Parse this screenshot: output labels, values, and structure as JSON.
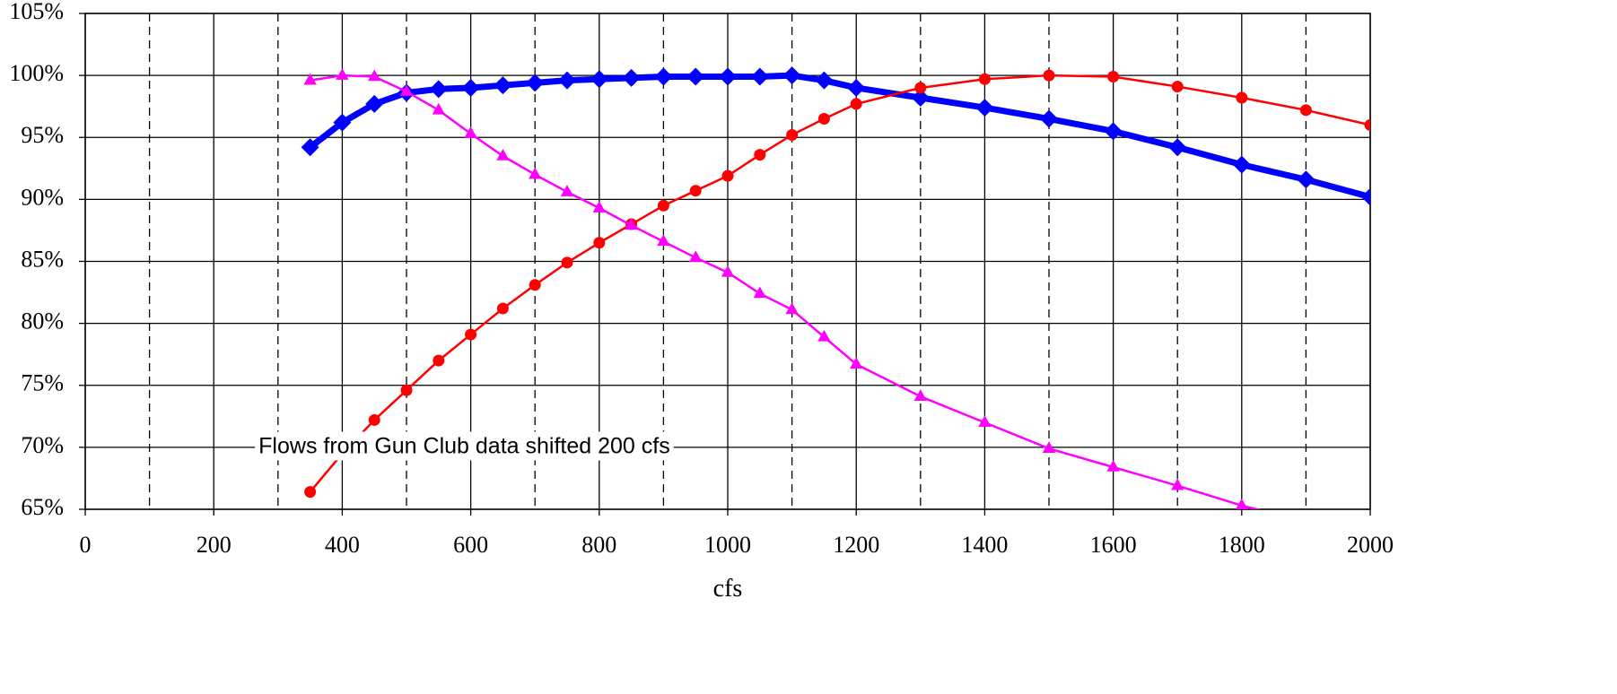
{
  "chart_data": {
    "type": "line",
    "title": "",
    "xlabel": "cfs",
    "ylabel": "",
    "xlim": [
      0,
      2000
    ],
    "ylim": [
      0.65,
      1.05
    ],
    "x_ticks": [
      0,
      200,
      400,
      600,
      800,
      1000,
      1200,
      1400,
      1600,
      1800,
      2000
    ],
    "x_tick_labels": [
      "0",
      "200",
      "400",
      "600",
      "800",
      "1000",
      "1200",
      "1400",
      "1600",
      "1800",
      "2000"
    ],
    "y_ticks": [
      0.65,
      0.7,
      0.75,
      0.8,
      0.85,
      0.9,
      0.95,
      1.0,
      1.05
    ],
    "y_tick_labels": [
      "65%",
      "70%",
      "75%",
      "80%",
      "85%",
      "90%",
      "95%",
      "100%",
      "105%"
    ],
    "solid_vgrid_x": [
      0,
      200,
      400,
      600,
      800,
      1000,
      1200,
      1400,
      1600,
      1800,
      2000
    ],
    "dashed_vgrid_x": [
      100,
      300,
      500,
      700,
      900,
      1100,
      1300,
      1500,
      1700,
      1900
    ],
    "grid": true,
    "legend": "none",
    "annotations": [
      {
        "text": "Flows from Gun Club data shifted 200 cfs",
        "x": 590,
        "y": 0.7
      }
    ],
    "series": [
      {
        "color": "#0000FF",
        "marker": "diamond",
        "x": [
          350,
          400,
          450,
          500,
          550,
          600,
          650,
          700,
          750,
          800,
          850,
          900,
          950,
          1000,
          1050,
          1100,
          1150,
          1200,
          1300,
          1400,
          1500,
          1600,
          1700,
          1800,
          1900,
          2000
        ],
        "y": [
          0.942,
          0.962,
          0.977,
          0.986,
          0.989,
          0.99,
          0.992,
          0.994,
          0.996,
          0.997,
          0.998,
          0.999,
          0.999,
          0.999,
          0.999,
          1.0,
          0.996,
          0.99,
          0.982,
          0.974,
          0.965,
          0.955,
          0.942,
          0.928,
          0.916,
          0.902
        ]
      },
      {
        "color": "#FF0000",
        "marker": "circle",
        "x": [
          350,
          400,
          450,
          500,
          550,
          600,
          650,
          700,
          750,
          800,
          850,
          900,
          950,
          1000,
          1050,
          1100,
          1150,
          1200,
          1300,
          1400,
          1500,
          1600,
          1700,
          1800,
          1900,
          2000
        ],
        "y": [
          0.664,
          0.695,
          0.722,
          0.746,
          0.77,
          0.791,
          0.812,
          0.831,
          0.849,
          0.865,
          0.88,
          0.895,
          0.907,
          0.919,
          0.936,
          0.952,
          0.965,
          0.977,
          0.99,
          0.997,
          1.0,
          0.999,
          0.991,
          0.982,
          0.972,
          0.96
        ]
      },
      {
        "color": "#FF00FF",
        "marker": "triangle",
        "x": [
          350,
          400,
          450,
          500,
          550,
          600,
          650,
          700,
          750,
          800,
          850,
          900,
          950,
          1000,
          1050,
          1100,
          1150,
          1200,
          1300,
          1400,
          1500,
          1600,
          1700,
          1800,
          1900
        ],
        "y": [
          0.996,
          1.0,
          0.999,
          0.987,
          0.972,
          0.953,
          0.935,
          0.92,
          0.906,
          0.893,
          0.879,
          0.866,
          0.853,
          0.841,
          0.824,
          0.811,
          0.789,
          0.767,
          0.741,
          0.72,
          0.699,
          0.684,
          0.669,
          0.653,
          0.64
        ]
      }
    ]
  }
}
